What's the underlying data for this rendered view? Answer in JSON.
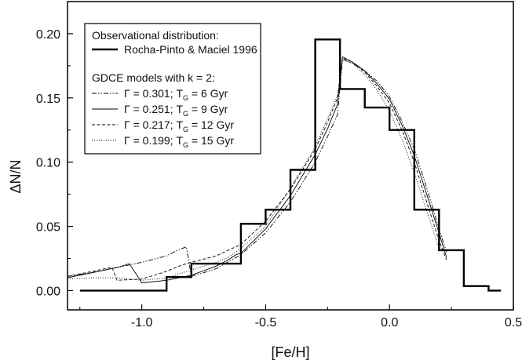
{
  "chart_data": {
    "type": "line",
    "title": "",
    "xlabel": "[Fe/H]",
    "ylabel": "ΔN/N",
    "xlim": [
      -1.3,
      0.5
    ],
    "ylim": [
      -0.015,
      0.225
    ],
    "xticks": [
      -1.0,
      -0.5,
      0.0,
      0.5
    ],
    "xtick_labels": [
      "-1.0",
      "-0.5",
      "0.0",
      "0.5"
    ],
    "yticks": [
      0.0,
      0.05,
      0.1,
      0.15,
      0.2
    ],
    "ytick_labels": [
      "0.00",
      "0.05",
      "0.10",
      "0.15",
      "0.20"
    ],
    "grid": false,
    "legend": {
      "placement": "top-left",
      "header1": "Observational distribution:",
      "header2": "GDCE models with k = 2:",
      "entries": [
        {
          "label": "Rocha-Pinto & Maciel 1996",
          "style": "thick-solid"
        },
        {
          "pre": "Γ = 0.301; T",
          "sub": "G",
          "post": " =   6 Gyr",
          "style": "dash-dot-dot"
        },
        {
          "pre": "Γ = 0.251; T",
          "sub": "G",
          "post": " =   9 Gyr",
          "style": "solid"
        },
        {
          "pre": "Γ = 0.217; T",
          "sub": "G",
          "post": " = 12 Gyr",
          "style": "dashed"
        },
        {
          "pre": "Γ = 0.199; T",
          "sub": "G",
          "post": " = 15 Gyr",
          "style": "dotted"
        }
      ]
    },
    "series": [
      {
        "name": "Rocha-Pinto & Maciel 1996",
        "kind": "step",
        "bins": [
          [
            -1.25,
            -0.9,
            0.0
          ],
          [
            -0.9,
            -0.8,
            0.0105
          ],
          [
            -0.8,
            -0.7,
            0.021
          ],
          [
            -0.7,
            -0.6,
            0.021
          ],
          [
            -0.6,
            -0.5,
            0.052
          ],
          [
            -0.5,
            -0.4,
            0.063
          ],
          [
            -0.4,
            -0.3,
            0.094
          ],
          [
            -0.3,
            -0.2,
            0.1955
          ],
          [
            -0.2,
            -0.1,
            0.157
          ],
          [
            -0.1,
            0.0,
            0.1425
          ],
          [
            0.0,
            0.1,
            0.125
          ],
          [
            0.1,
            0.2,
            0.063
          ],
          [
            0.2,
            0.3,
            0.0315
          ],
          [
            0.3,
            0.4,
            0.0035
          ],
          [
            0.4,
            0.45,
            0.0
          ]
        ]
      },
      {
        "name": "Γ = 0.301; TG = 6 Gyr",
        "x": [
          -1.3,
          -1.2,
          -1.1,
          -1.0,
          -0.9,
          -0.85,
          -0.82,
          -0.8,
          -0.7,
          -0.6,
          -0.5,
          -0.4,
          -0.3,
          -0.25,
          -0.21,
          -0.19,
          -0.15,
          -0.1,
          -0.05,
          0.0,
          0.05,
          0.1,
          0.15,
          0.2,
          0.23
        ],
        "y": [
          0.011,
          0.014,
          0.018,
          0.022,
          0.027,
          0.032,
          0.034,
          0.011,
          0.017,
          0.028,
          0.045,
          0.069,
          0.1,
          0.12,
          0.137,
          0.18,
          0.177,
          0.171,
          0.163,
          0.151,
          0.132,
          0.11,
          0.08,
          0.048,
          0.03
        ]
      },
      {
        "name": "Γ = 0.251; TG = 9 Gyr",
        "x": [
          -1.3,
          -1.2,
          -1.1,
          -1.05,
          -1.0,
          -0.9,
          -0.8,
          -0.7,
          -0.65,
          -0.62,
          -0.6,
          -0.5,
          -0.4,
          -0.3,
          -0.25,
          -0.21,
          -0.19,
          -0.15,
          -0.1,
          -0.05,
          0.0,
          0.05,
          0.1,
          0.15,
          0.2,
          0.23
        ],
        "y": [
          0.01,
          0.014,
          0.018,
          0.021,
          0.006,
          0.008,
          0.012,
          0.019,
          0.024,
          0.028,
          0.029,
          0.048,
          0.074,
          0.106,
          0.126,
          0.145,
          0.182,
          0.178,
          0.171,
          0.161,
          0.149,
          0.129,
          0.105,
          0.075,
          0.045,
          0.026
        ]
      },
      {
        "name": "Γ = 0.217; TG = 12 Gyr",
        "x": [
          -1.3,
          -1.2,
          -1.15,
          -1.12,
          -1.1,
          -1.0,
          -0.9,
          -0.85,
          -0.82,
          -0.8,
          -0.7,
          -0.6,
          -0.5,
          -0.4,
          -0.3,
          -0.25,
          -0.21,
          -0.19,
          -0.15,
          -0.1,
          -0.05,
          0.0,
          0.05,
          0.1,
          0.15,
          0.2,
          0.23
        ],
        "y": [
          0.011,
          0.015,
          0.017,
          0.018,
          0.008,
          0.009,
          0.015,
          0.019,
          0.021,
          0.022,
          0.027,
          0.036,
          0.054,
          0.079,
          0.11,
          0.131,
          0.15,
          0.181,
          0.178,
          0.17,
          0.159,
          0.146,
          0.125,
          0.1,
          0.069,
          0.039,
          0.024
        ]
      },
      {
        "name": "Γ = 0.199; TG = 15 Gyr",
        "x": [
          -1.3,
          -1.2,
          -1.1,
          -1.05,
          -1.0,
          -0.9,
          -0.8,
          -0.75,
          -0.7,
          -0.65,
          -0.6,
          -0.5,
          -0.4,
          -0.3,
          -0.25,
          -0.21,
          -0.19,
          -0.15,
          -0.1,
          -0.05,
          0.0,
          0.05,
          0.1,
          0.15,
          0.2
        ],
        "y": [
          0.009,
          0.01,
          0.01,
          0.009,
          0.008,
          0.01,
          0.016,
          0.019,
          0.022,
          0.026,
          0.033,
          0.05,
          0.08,
          0.112,
          0.134,
          0.152,
          0.18,
          0.177,
          0.168,
          0.156,
          0.14,
          0.118,
          0.092,
          0.062,
          0.033
        ]
      }
    ],
    "series_styles": [
      "thick-solid",
      "dash-dot-dot",
      "solid",
      "dashed",
      "dotted"
    ]
  }
}
